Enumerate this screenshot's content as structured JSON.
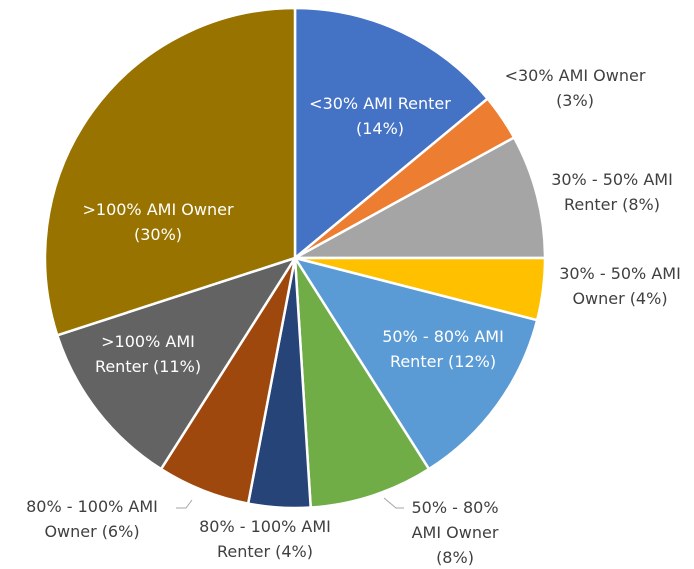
{
  "chart_data": {
    "type": "pie",
    "categories": [
      [
        "<30% AMI Renter"
      ],
      [
        "<30% AMI Owner"
      ],
      [
        "30% - 50% AMI",
        "Renter"
      ],
      [
        "30% - 50% AMI",
        "Owner"
      ],
      [
        "50% - 80% AMI",
        "Renter"
      ],
      [
        "50% - 80%",
        "AMI Owner"
      ],
      [
        "80% - 100% AMI",
        "Renter"
      ],
      [
        "80% - 100% AMI",
        "Owner"
      ],
      [
        ">100% AMI",
        "Renter"
      ],
      [
        ">100% AMI Owner"
      ]
    ],
    "values": [
      14,
      3,
      8,
      4,
      12,
      8,
      4,
      6,
      11,
      30
    ],
    "value_labels": [
      "(14%)",
      "(3%)",
      "(8%)",
      "(4%)",
      "(12%)",
      "(8%)",
      "(4%)",
      "(6%)",
      "(11%)",
      "(30%)"
    ],
    "colors": [
      "#4472c4",
      "#ed7d31",
      "#a5a5a5",
      "#ffc000",
      "#5b9bd5",
      "#70ad47",
      "#264478",
      "#9e480e",
      "#636363",
      "#997300"
    ]
  }
}
